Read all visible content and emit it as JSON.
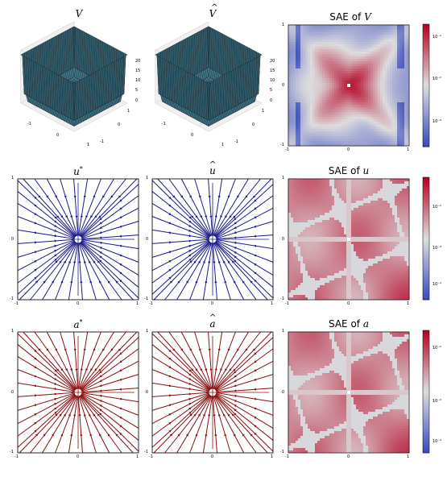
{
  "colors": {
    "surface": "#4a7f93",
    "stream_u": "#1a1a8c",
    "stream_a": "#8b0e0e",
    "cmap_low": "#3b4cc0",
    "cmap_mid": "#dddddd",
    "cmap_high": "#b40426"
  },
  "chart_data": [
    {
      "id": "V",
      "type": "surface3d",
      "title_base": "V",
      "title_hat": false,
      "x_ticks": [
        "-1",
        "0",
        "1"
      ],
      "y_ticks": [
        "-1",
        "0",
        "1"
      ],
      "z_ticks": [
        "0",
        "5",
        "10",
        "15",
        "20"
      ],
      "zlim": [
        0,
        22
      ]
    },
    {
      "id": "Vhat",
      "type": "surface3d",
      "title_base": "V",
      "title_hat": true,
      "x_ticks": [
        "-1",
        "0",
        "1"
      ],
      "y_ticks": [
        "-1",
        "0",
        "1"
      ],
      "z_ticks": [
        "0",
        "5",
        "10",
        "15",
        "20"
      ],
      "zlim": [
        0,
        22
      ]
    },
    {
      "id": "SAE_V",
      "type": "heatmap",
      "title_prefix": "SAE of ",
      "title_var": "V",
      "x_ticks": [
        "-1",
        "0",
        "1"
      ],
      "y_ticks": [
        "-1",
        "0",
        "1"
      ],
      "scale": "log",
      "colorbar_ticks": [
        "10⁻¹",
        "10⁻²",
        "10⁻³"
      ],
      "colorbar_range": [
        0.0001,
        0.2
      ]
    },
    {
      "id": "u_star",
      "type": "streamplot",
      "title_base": "u",
      "title_sup": "*",
      "x_ticks": [
        "-1",
        "0",
        "1"
      ],
      "y_ticks": [
        "-1",
        "0",
        "1"
      ],
      "xlim": [
        -1,
        1
      ],
      "ylim": [
        -1,
        1
      ],
      "color_key": "stream_u"
    },
    {
      "id": "u_hat",
      "type": "streamplot",
      "title_base": "u",
      "title_hat": true,
      "x_ticks": [
        "-1",
        "0",
        "1"
      ],
      "y_ticks": [
        "-1",
        "0",
        "1"
      ],
      "xlim": [
        -1,
        1
      ],
      "ylim": [
        -1,
        1
      ],
      "color_key": "stream_u"
    },
    {
      "id": "SAE_u",
      "type": "heatmap",
      "title_prefix": "SAE of ",
      "title_var": "u",
      "x_ticks": [
        "-1",
        "0",
        "1"
      ],
      "y_ticks": [
        "-1",
        "0",
        "1"
      ],
      "scale": "log",
      "colorbar_ticks": [
        "10⁻²",
        "10⁻³",
        "10⁻⁴"
      ],
      "colorbar_range": [
        3e-05,
        0.03
      ]
    },
    {
      "id": "a_star",
      "type": "streamplot",
      "title_base": "a",
      "title_sup": "*",
      "x_ticks": [
        "-1",
        "0",
        "1"
      ],
      "y_ticks": [
        "-1",
        "0",
        "1"
      ],
      "xlim": [
        -1,
        1
      ],
      "ylim": [
        -1,
        1
      ],
      "color_key": "stream_a"
    },
    {
      "id": "a_hat",
      "type": "streamplot",
      "title_base": "a",
      "title_hat": true,
      "x_ticks": [
        "-1",
        "0",
        "1"
      ],
      "y_ticks": [
        "-1",
        "0",
        "1"
      ],
      "xlim": [
        -1,
        1
      ],
      "ylim": [
        -1,
        1
      ],
      "color_key": "stream_a"
    },
    {
      "id": "SAE_a",
      "type": "heatmap",
      "title_prefix": "SAE of ",
      "title_var": "a",
      "x_ticks": [
        "-1",
        "0",
        "1"
      ],
      "y_ticks": [
        "-1",
        "0",
        "1"
      ],
      "scale": "log",
      "colorbar_ticks": [
        "10⁻²",
        "10⁻³",
        "10⁻⁴"
      ],
      "colorbar_range": [
        3e-05,
        0.03
      ]
    }
  ]
}
